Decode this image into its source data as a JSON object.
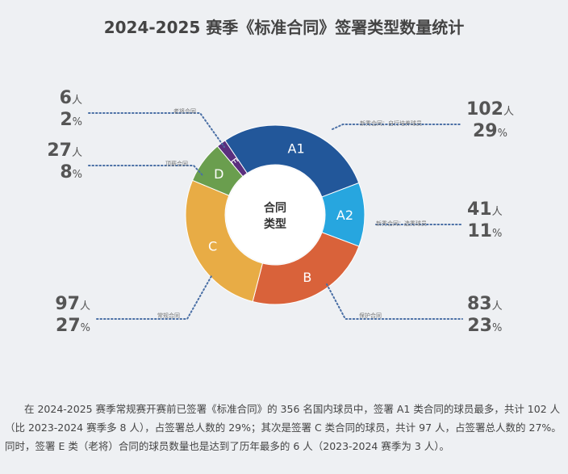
{
  "chart_data": {
    "type": "pie",
    "title": "2024-2025 赛季《标准合同》签署类型数量统计",
    "center_label": [
      "合同",
      "类型"
    ],
    "slices": [
      {
        "key": "A1",
        "name": "新秀合同：自行培养球员",
        "count": 102,
        "percent": 29,
        "color": "#22579a"
      },
      {
        "key": "A2",
        "name": "新秀合同：选秀球员",
        "count": 41,
        "percent": 11,
        "color": "#27a6df"
      },
      {
        "key": "B",
        "name": "保护合同",
        "count": 83,
        "percent": 23,
        "color": "#d9623a"
      },
      {
        "key": "C",
        "name": "常规合同",
        "count": 97,
        "percent": 27,
        "color": "#e8ac45"
      },
      {
        "key": "D",
        "name": "顶薪合同",
        "count": 27,
        "percent": 8,
        "color": "#6a9e4e"
      },
      {
        "key": "E",
        "name": "老将合同",
        "count": 6,
        "percent": 2,
        "color": "#5a2f7e"
      }
    ],
    "unit_count": "人",
    "unit_percent": "%"
  },
  "paragraph": "在 2024-2025 赛季常规赛开赛前已签署《标准合同》的 356 名国内球员中，签署 A1 类合同的球员最多，共计 102 人（比 2023-2024 赛季多 8 人），占签署总人数的 29%；其次是签署 C 类合同的球员，共计 97 人，占签署总人数的 27%。同时，签署 E 类（老将）合同的球员数量也是达到了历年最多的 6 人（2023-2024 赛季为 3 人）。"
}
